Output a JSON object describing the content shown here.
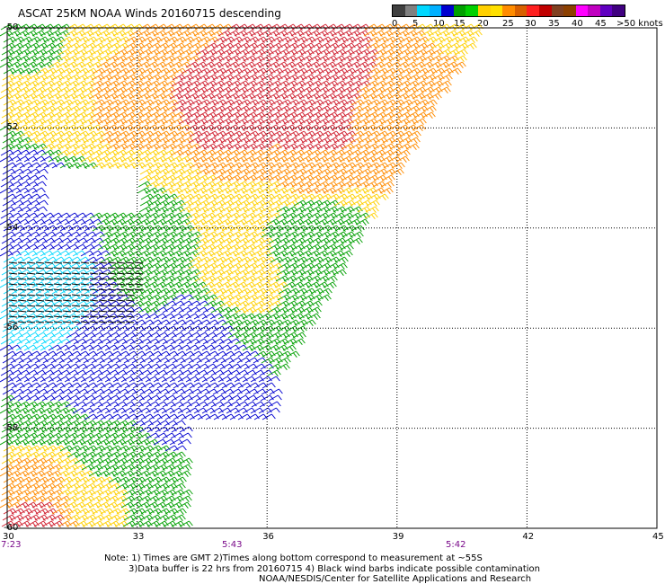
{
  "title": "ASCAT 25KM NOAA Winds 20160715 descending",
  "legend": {
    "colors": [
      "#404040",
      "#808080",
      "#00d8ff",
      "#00b0ff",
      "#0000d0",
      "#00a000",
      "#00d000",
      "#ffd000",
      "#ffe000",
      "#ff8c00",
      "#d86000",
      "#ff2020",
      "#c00000",
      "#804020",
      "#8c4000",
      "#ff00ff",
      "#c000c0",
      "#6000c0",
      "#400080"
    ],
    "labels": [
      "0",
      "5",
      "10",
      "15",
      "20",
      "25",
      "30",
      "35",
      "40",
      "45",
      ">50 knots"
    ]
  },
  "lat_labels": [
    "-50",
    "-52",
    "-54",
    "-56",
    "-58",
    "-60"
  ],
  "lon_labels": [
    "30",
    "33",
    "36",
    "39",
    "42",
    "45"
  ],
  "times": [
    "7:23",
    "5:43",
    "5:42"
  ],
  "notes": [
    "Note: 1) Times are GMT 2)Times along bottom correspond to measurement at ~55S",
    "3)Data buffer is 22 hrs from 20160715 4) Black wind barbs indicate possible contamination",
    "NOAA/NESDIS/Center for Satellite Applications and Research"
  ],
  "wind_field": [
    {
      "lat": -50.0,
      "lon": 30.5,
      "knots": 18
    },
    {
      "lat": -50.0,
      "lon": 32.0,
      "knots": 22
    },
    {
      "lat": -50.0,
      "lon": 34.0,
      "knots": 28
    },
    {
      "lat": -50.0,
      "lon": 36.0,
      "knots": 30
    },
    {
      "lat": -50.0,
      "lon": 38.0,
      "knots": 30
    },
    {
      "lat": -50.0,
      "lon": 40.0,
      "knots": 24
    },
    {
      "lat": -51.0,
      "lon": 30.5,
      "knots": 20
    },
    {
      "lat": -51.0,
      "lon": 33.0,
      "knots": 30
    },
    {
      "lat": -51.0,
      "lon": 35.0,
      "knots": 34
    },
    {
      "lat": -51.0,
      "lon": 37.0,
      "knots": 33
    },
    {
      "lat": -51.0,
      "lon": 39.0,
      "knots": 30
    },
    {
      "lat": -52.0,
      "lon": 31.0,
      "knots": 24
    },
    {
      "lat": -52.0,
      "lon": 33.0,
      "knots": 30
    },
    {
      "lat": -52.0,
      "lon": 35.0,
      "knots": 35
    },
    {
      "lat": -52.0,
      "lon": 37.0,
      "knots": 33
    },
    {
      "lat": -52.0,
      "lon": 38.5,
      "knots": 28
    },
    {
      "lat": -53.0,
      "lon": 30.5,
      "knots": 12
    },
    {
      "lat": -53.0,
      "lon": 33.0,
      "knots": 20
    },
    {
      "lat": -53.0,
      "lon": 35.0,
      "knots": 25
    },
    {
      "lat": -53.0,
      "lon": 37.0,
      "knots": 27
    },
    {
      "lat": -54.0,
      "lon": 31.0,
      "knots": 14
    },
    {
      "lat": -54.0,
      "lon": 33.0,
      "knots": 17
    },
    {
      "lat": -54.0,
      "lon": 35.0,
      "knots": 20
    },
    {
      "lat": -54.0,
      "lon": 37.0,
      "knots": 15
    },
    {
      "lat": -55.0,
      "lon": 31.0,
      "knots": 6
    },
    {
      "lat": -55.0,
      "lon": 33.0,
      "knots": 18
    },
    {
      "lat": -55.0,
      "lon": 35.0,
      "knots": 22
    },
    {
      "lat": -56.0,
      "lon": 30.5,
      "knots": 8
    },
    {
      "lat": -56.0,
      "lon": 32.0,
      "knots": 10
    },
    {
      "lat": -56.0,
      "lon": 34.0,
      "knots": 13
    },
    {
      "lat": -57.0,
      "lon": 30.5,
      "knots": 13
    },
    {
      "lat": -57.0,
      "lon": 32.0,
      "knots": 12
    },
    {
      "lat": -57.0,
      "lon": 34.0,
      "knots": 11
    },
    {
      "lat": -58.0,
      "lon": 30.5,
      "knots": 18
    },
    {
      "lat": -58.0,
      "lon": 32.0,
      "knots": 15
    },
    {
      "lat": -58.0,
      "lon": 34.0,
      "knots": 13
    },
    {
      "lat": -59.0,
      "lon": 30.5,
      "knots": 26
    },
    {
      "lat": -59.0,
      "lon": 32.0,
      "knots": 20
    },
    {
      "lat": -59.0,
      "lon": 33.5,
      "knots": 17
    },
    {
      "lat": -60.0,
      "lon": 30.5,
      "knots": 32
    },
    {
      "lat": -60.0,
      "lon": 32.0,
      "knots": 24
    },
    {
      "lat": -60.0,
      "lon": 33.0,
      "knots": 18
    }
  ]
}
